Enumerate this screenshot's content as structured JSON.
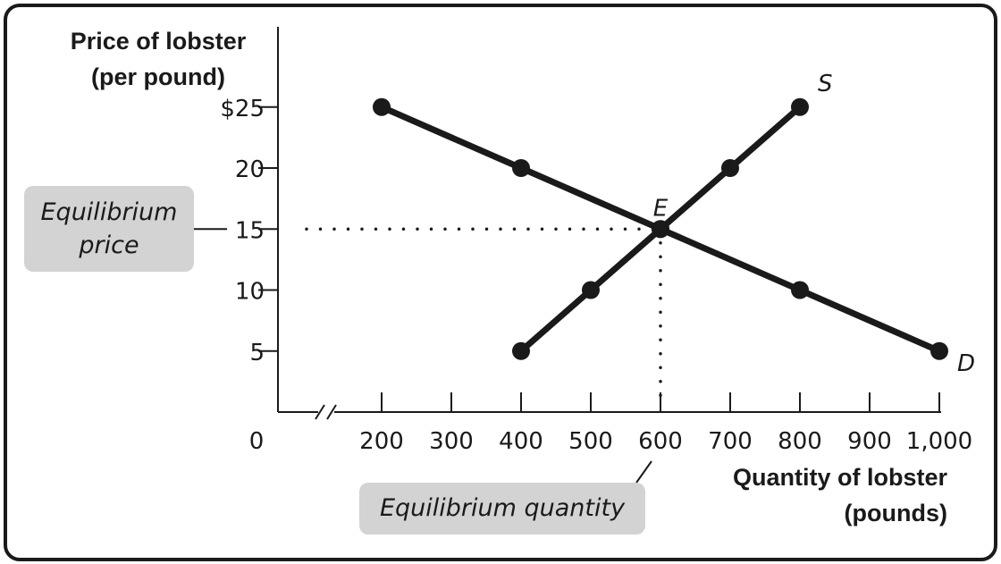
{
  "chart_data": {
    "type": "line",
    "ylabel_line1": "Price of lobster",
    "ylabel_line2": "(per pound)",
    "xlabel_line1": "Quantity of lobster",
    "xlabel_line2": "(pounds)",
    "origin_label": "0",
    "xticks": [
      200,
      300,
      400,
      500,
      600,
      700,
      800,
      900,
      1000
    ],
    "xtick_labels": [
      "200",
      "300",
      "400",
      "500",
      "600",
      "700",
      "800",
      "900",
      "1,000"
    ],
    "yticks": [
      5,
      10,
      15,
      20,
      25
    ],
    "ytick_labels": [
      "5",
      "10",
      "15",
      "20",
      "$25"
    ],
    "xlim": [
      100,
      1000
    ],
    "ylim": [
      0,
      25
    ],
    "axis_break": true,
    "series": [
      {
        "name": "S",
        "x": [
          400,
          500,
          600,
          700,
          800
        ],
        "y": [
          5,
          10,
          15,
          20,
          25
        ]
      },
      {
        "name": "D",
        "x": [
          200,
          400,
          600,
          800,
          1000
        ],
        "y": [
          25,
          20,
          15,
          10,
          5
        ]
      }
    ],
    "equilibrium": {
      "label": "E",
      "x": 600,
      "y": 15
    },
    "callouts": {
      "price_line1": "Equilibrium",
      "price_line2": "price",
      "quantity": "Equilibrium quantity"
    }
  }
}
